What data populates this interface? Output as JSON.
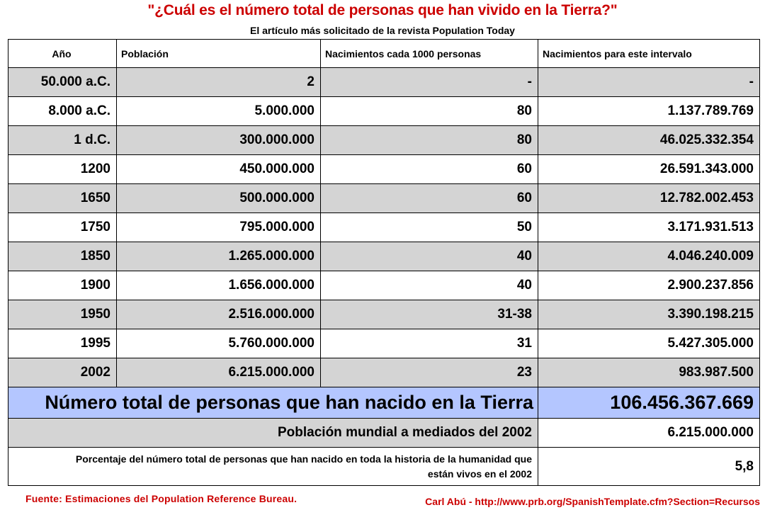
{
  "title": "\"¿Cuál es el número total de personas que han vivido en la Tierra?\"",
  "subtitle": "El artículo más solicitado de la revista Population Today",
  "headers": [
    "Año",
    "Población",
    "Nacimientos cada 1000 personas",
    "Nacimientos para este intervalo"
  ],
  "rows": [
    {
      "year": "50.000 a.C.",
      "population": "2",
      "birth_rate": "-",
      "births": "-"
    },
    {
      "year": "8.000 a.C.",
      "population": "5.000.000",
      "birth_rate": "80",
      "births": "1.137.789.769"
    },
    {
      "year": "1 d.C.",
      "population": "300.000.000",
      "birth_rate": "80",
      "births": "46.025.332.354"
    },
    {
      "year": "1200",
      "population": "450.000.000",
      "birth_rate": "60",
      "births": "26.591.343.000"
    },
    {
      "year": "1650",
      "population": "500.000.000",
      "birth_rate": "60",
      "births": "12.782.002.453"
    },
    {
      "year": "1750",
      "population": "795.000.000",
      "birth_rate": "50",
      "births": "3.171.931.513"
    },
    {
      "year": "1850",
      "population": "1.265.000.000",
      "birth_rate": "40",
      "births": "4.046.240.009"
    },
    {
      "year": "1900",
      "population": "1.656.000.000",
      "birth_rate": "40",
      "births": "2.900.237.856"
    },
    {
      "year": "1950",
      "population": "2.516.000.000",
      "birth_rate": "31-38",
      "births": "3.390.198.215"
    },
    {
      "year": "1995",
      "population": "5.760.000.000",
      "birth_rate": "31",
      "births": "5.427.305.000"
    },
    {
      "year": "2002",
      "population": "6.215.000.000",
      "birth_rate": "23",
      "births": "983.987.500"
    }
  ],
  "total": {
    "label": "Número total de personas que han nacido en la Tierra",
    "value": "106.456.367.669"
  },
  "world": {
    "label": "Población mundial a mediados del 2002",
    "value": "6.215.000.000"
  },
  "percent": {
    "label": "Porcentaje del número total de personas que han nacido en toda la historia de la humanidad que están vivos en el 2002",
    "value": "5,8"
  },
  "source": "Fuente: Estimaciones del Population Reference Bureau.",
  "credit": "Carl Abú - http://www.prb.org/SpanishTemplate.cfm?Section=Recursos",
  "colors": {
    "title": "#cc0000",
    "gray_row": "#d4d4d4",
    "total_row": "#b4c6ff"
  }
}
